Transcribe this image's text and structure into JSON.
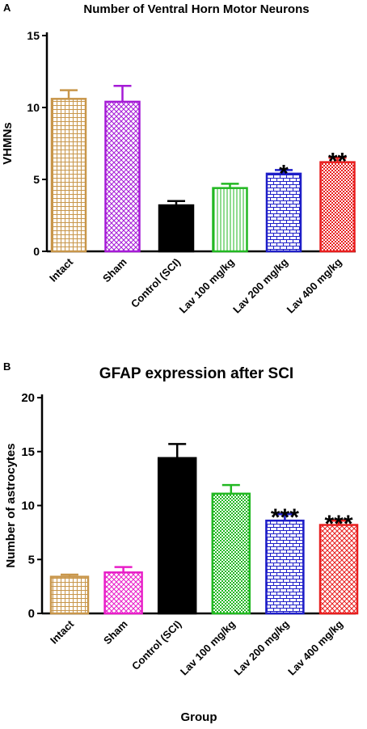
{
  "chart_data": [
    {
      "type": "bar",
      "panel": "A",
      "title": "Number of Ventral Horn Motor Neurons",
      "xlabel": "",
      "ylabel": "VHMNs",
      "ylim": [
        0,
        15
      ],
      "yticks": [
        "0",
        "5",
        "10",
        "15"
      ],
      "categories": [
        "Intact",
        "Sham",
        "Control (SCI)",
        "Lav 100 mg/kg",
        "Lav 200 mg/kg",
        "Lav 400 mg/kg"
      ],
      "values": [
        10.6,
        10.4,
        3.2,
        4.4,
        5.4,
        6.2
      ],
      "errors": [
        0.6,
        1.1,
        0.3,
        0.3,
        0.25,
        0.3
      ],
      "significance": [
        "",
        "",
        "",
        "",
        "*",
        "**"
      ],
      "colors": [
        "#C8964A",
        "#A51BD6",
        "#000000",
        "#22B822",
        "#1E1EC8",
        "#E81E1E"
      ],
      "patterns": [
        "grid",
        "crosshatch",
        "solid",
        "vertical",
        "brick",
        "checker"
      ],
      "grid": false,
      "legend": "none"
    },
    {
      "type": "bar",
      "panel": "B",
      "title": "GFAP expression after SCI",
      "xlabel": "Group",
      "ylabel": "Number of astrocytes",
      "ylim": [
        0,
        20
      ],
      "yticks": [
        "0",
        "5",
        "10",
        "15",
        "20"
      ],
      "categories": [
        "Intact",
        "Sham",
        "Control (SCI)",
        "Lav 100 mg/kg",
        "Lav 200 mg/kg",
        "Lav 400 mg/kg"
      ],
      "values": [
        3.4,
        3.8,
        14.4,
        11.1,
        8.6,
        8.2
      ],
      "errors": [
        0.2,
        0.5,
        1.3,
        0.8,
        0.6,
        0.4
      ],
      "significance": [
        "",
        "",
        "",
        "",
        "***",
        "***"
      ],
      "colors": [
        "#C8964A",
        "#E81EC8",
        "#000000",
        "#22B822",
        "#1E1EC8",
        "#E81E1E"
      ],
      "patterns": [
        "grid",
        "crosshatch",
        "solid",
        "checker",
        "brick",
        "crosshatch"
      ],
      "grid": false,
      "legend": "none"
    }
  ]
}
